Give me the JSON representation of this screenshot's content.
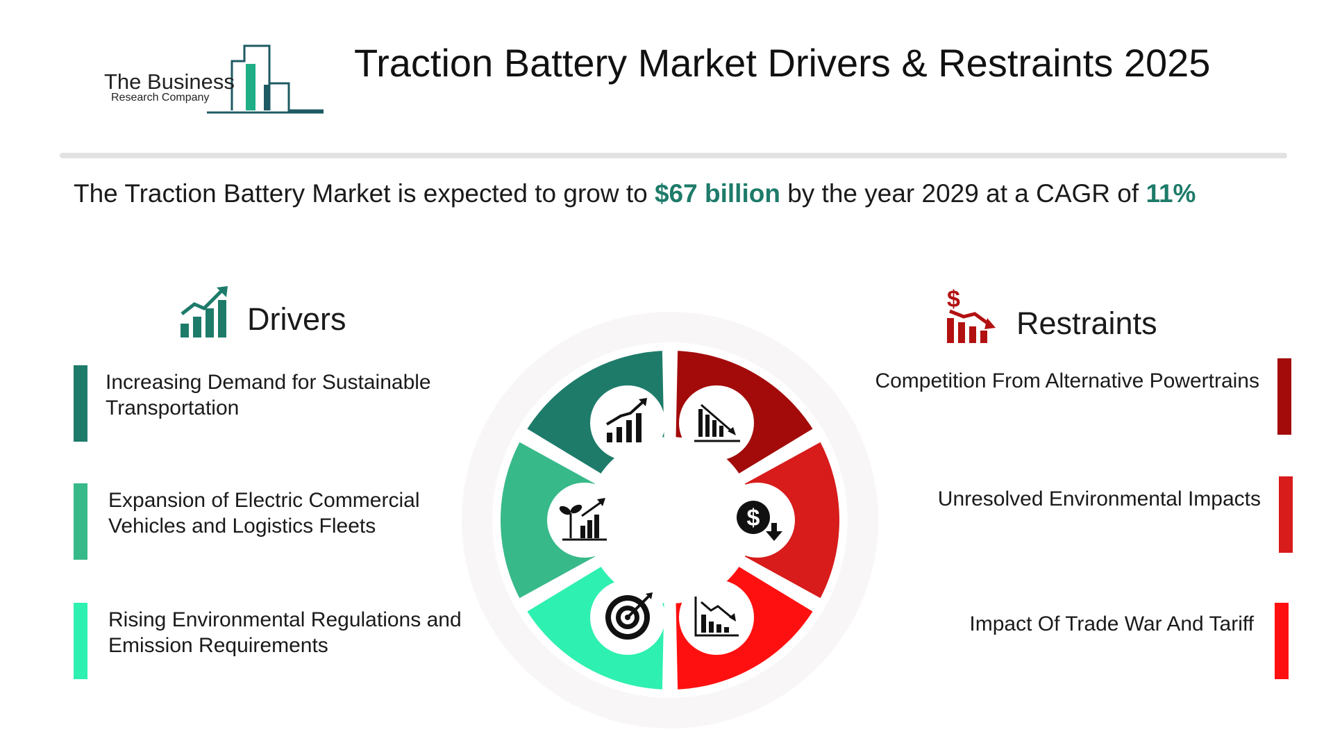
{
  "header": {
    "logo": {
      "line1": "The Business",
      "line2": "Research Company"
    },
    "title": "Traction Battery Market Drivers & Restraints 2025"
  },
  "summary": {
    "prefix": "The Traction Battery Market is expected to grow to ",
    "value": "$67 billion",
    "middle": " by the year 2029 at a CAGR of ",
    "cagr": "11%"
  },
  "drivers": {
    "title": "Drivers",
    "items": [
      {
        "label": "Increasing Demand for Sustainable Transportation",
        "color": "#1e7b6a"
      },
      {
        "label": "Expansion of Electric Commercial Vehicles and Logistics Fleets",
        "color": "#38b98a"
      },
      {
        "label": "Rising Environmental Regulations and Emission Requirements",
        "color": "#2ef0b0"
      }
    ]
  },
  "restraints": {
    "title": "Restraints",
    "items": [
      {
        "label": "Competition From Alternative Powertrains",
        "color": "#a30b0b"
      },
      {
        "label": "Unresolved Environmental Impacts",
        "color": "#d81b1b"
      },
      {
        "label": "Impact Of Trade War And Tariff",
        "color": "#ff1010"
      }
    ]
  },
  "icons": {
    "drivers_heading": "growth-chart-icon",
    "restraints_heading": "dollar-decline-icon",
    "wheel": [
      "rising-bars-icon",
      "falling-bars-icon",
      "dollar-down-icon",
      "declining-chart-icon",
      "target-icon",
      "plant-growth-icon"
    ]
  }
}
